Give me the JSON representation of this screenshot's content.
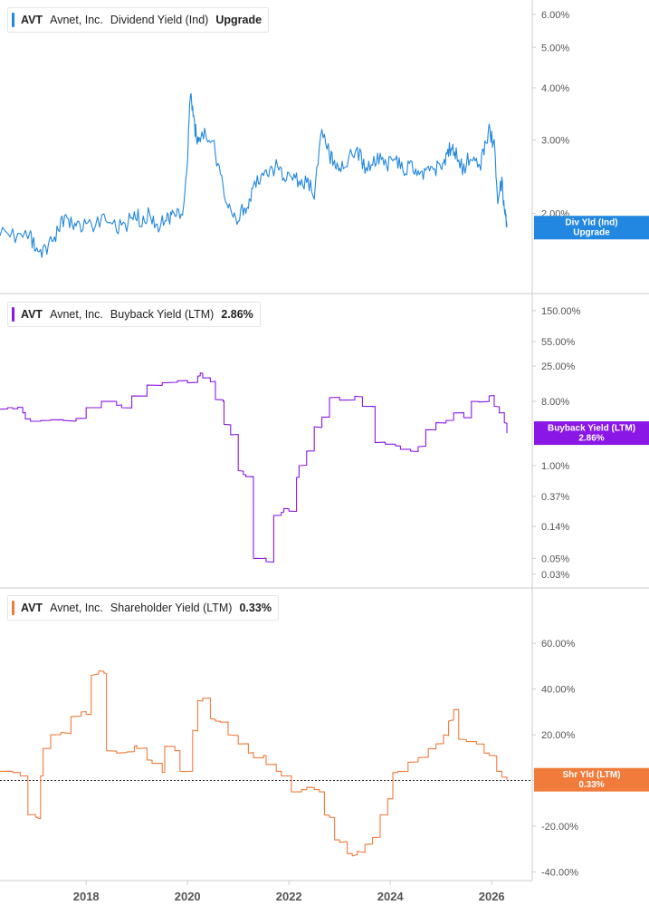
{
  "colors": {
    "dividend": "#2187e0",
    "buyback": "#8a17e6",
    "shareholder": "#f07b3b",
    "axis_text": "#555555",
    "divider": "#cccccc"
  },
  "chart_data": [
    {
      "type": "line",
      "legend": {
        "ticker": "AVT",
        "company": "Avnet, Inc.",
        "metric": "Dividend Yield (Ind)",
        "value": "Upgrade"
      },
      "badge": {
        "line1": "Div Yld (Ind)",
        "line2": "Upgrade"
      },
      "scale": "log",
      "ylim": [
        1.45,
        6.3
      ],
      "yticks": [
        2,
        3,
        4,
        5,
        6
      ],
      "ytick_labels": [
        "2.00%",
        "3.00%",
        "4.00%",
        "5.00%",
        "6.00%"
      ],
      "x": [
        2016.3,
        2016.6,
        2016.9,
        2017.0,
        2017.15,
        2017.3,
        2017.45,
        2017.6,
        2017.75,
        2017.9,
        2018.1,
        2018.35,
        2018.6,
        2018.8,
        2018.95,
        2019.1,
        2019.25,
        2019.4,
        2019.55,
        2019.65,
        2019.75,
        2019.9,
        2020.0,
        2020.06,
        2020.12,
        2020.18,
        2020.25,
        2020.35,
        2020.5,
        2020.65,
        2020.8,
        2020.95,
        2021.1,
        2021.2,
        2021.3,
        2021.45,
        2021.6,
        2021.75,
        2021.9,
        2022.05,
        2022.2,
        2022.35,
        2022.5,
        2022.65,
        2022.8,
        2022.9,
        2023.0,
        2023.15,
        2023.35,
        2023.5,
        2023.65,
        2023.8,
        2023.95,
        2024.1,
        2024.25,
        2024.4,
        2024.55,
        2024.7,
        2024.85,
        2025.0,
        2025.1,
        2025.2,
        2025.3,
        2025.45,
        2025.6,
        2025.75,
        2025.85,
        2025.95,
        2026.05,
        2026.12,
        2026.2,
        2026.26,
        2026.3
      ],
      "y": [
        1.82,
        1.78,
        1.76,
        1.65,
        1.62,
        1.7,
        1.82,
        1.97,
        1.9,
        1.86,
        1.88,
        1.92,
        1.84,
        1.88,
        2.05,
        1.88,
        2.0,
        1.85,
        1.96,
        1.97,
        1.95,
        2.05,
        2.6,
        3.95,
        3.3,
        3.05,
        3.05,
        3.15,
        2.95,
        2.45,
        2.05,
        1.93,
        2.05,
        2.1,
        2.3,
        2.45,
        2.5,
        2.6,
        2.4,
        2.5,
        2.35,
        2.4,
        2.25,
        3.15,
        2.75,
        2.65,
        2.6,
        2.7,
        2.85,
        2.55,
        2.65,
        2.7,
        2.6,
        2.75,
        2.5,
        2.65,
        2.45,
        2.5,
        2.55,
        2.6,
        2.7,
        2.9,
        2.75,
        2.55,
        2.8,
        2.55,
        2.85,
        3.15,
        2.9,
        2.2,
        2.35,
        2.0,
        1.85
      ]
    },
    {
      "type": "line",
      "legend": {
        "ticker": "AVT",
        "company": "Avnet, Inc.",
        "metric": "Buyback Yield (LTM)",
        "value": "2.86%"
      },
      "badge": {
        "line1": "Buyback Yield (LTM)",
        "line2": "2.86%"
      },
      "scale": "log",
      "ylim": [
        0.025,
        200
      ],
      "yticks": [
        0.03,
        0.05,
        0.14,
        0.37,
        1.0,
        8.0,
        25.0,
        55.0,
        150.0
      ],
      "ytick_labels": [
        "0.03%",
        "0.05%",
        "0.14%",
        "0.37%",
        "1.00%",
        "8.00%",
        "25.00%",
        "55.00%",
        "150.00%"
      ],
      "x": [
        2016.3,
        2016.45,
        2016.55,
        2016.65,
        2016.75,
        2016.8,
        2016.9,
        2017.1,
        2017.3,
        2017.55,
        2017.8,
        2018.0,
        2018.3,
        2018.6,
        2018.7,
        2018.9,
        2019.2,
        2019.5,
        2019.8,
        2020.0,
        2020.2,
        2020.25,
        2020.3,
        2020.45,
        2020.55,
        2020.7,
        2020.72,
        2020.85,
        2021.0,
        2021.1,
        2021.15,
        2021.3,
        2021.35,
        2021.5,
        2021.55,
        2021.7,
        2021.85,
        2021.9,
        2022.0,
        2022.15,
        2022.2,
        2022.35,
        2022.5,
        2022.65,
        2022.8,
        2023.0,
        2023.3,
        2023.45,
        2023.65,
        2023.7,
        2023.9,
        2024.1,
        2024.2,
        2024.4,
        2024.55,
        2024.7,
        2024.9,
        2025.1,
        2025.25,
        2025.45,
        2025.6,
        2025.75,
        2025.95,
        2026.05,
        2026.15,
        2026.25,
        2026.3
      ],
      "y": [
        6.2,
        6.5,
        6.3,
        6.6,
        5.5,
        4.5,
        4.2,
        4.3,
        4.4,
        4.3,
        4.6,
        6.5,
        8.0,
        7.0,
        6.5,
        9.5,
        13.5,
        14.5,
        15.5,
        14.5,
        18.0,
        20.0,
        17.0,
        15.0,
        8.5,
        8.0,
        3.8,
        2.7,
        0.85,
        0.75,
        0.7,
        0.05,
        0.05,
        0.05,
        0.045,
        0.2,
        0.22,
        0.25,
        0.23,
        0.68,
        1.0,
        1.6,
        3.5,
        4.8,
        9.0,
        8.3,
        9.4,
        6.8,
        6.7,
        2.1,
        2.0,
        1.9,
        1.7,
        1.6,
        1.85,
        3.2,
        4.0,
        4.3,
        5.5,
        4.7,
        8.0,
        7.8,
        9.5,
        6.8,
        5.5,
        4.0,
        2.86
      ]
    },
    {
      "type": "line",
      "legend": {
        "ticker": "AVT",
        "company": "Avnet, Inc.",
        "metric": "Shareholder Yield (LTM)",
        "value": "0.33%"
      },
      "badge": {
        "line1": "Shr Yld (LTM)",
        "line2": "0.33%"
      },
      "scale": "linear",
      "ylim": [
        -43,
        68
      ],
      "yticks": [
        -40,
        -20,
        0,
        20,
        40,
        60
      ],
      "ytick_labels": [
        "-40.00%",
        "-20.00%",
        "0.00%",
        "20.00%",
        "40.00%",
        "60.00%"
      ],
      "zero_line": true,
      "x": [
        2016.3,
        2016.55,
        2016.7,
        2016.85,
        2017.0,
        2017.05,
        2017.1,
        2017.15,
        2017.3,
        2017.5,
        2017.7,
        2017.9,
        2018.0,
        2018.1,
        2018.25,
        2018.35,
        2018.4,
        2018.6,
        2018.8,
        2018.95,
        2019.0,
        2019.2,
        2019.3,
        2019.5,
        2019.55,
        2019.75,
        2019.85,
        2020.0,
        2020.1,
        2020.2,
        2020.3,
        2020.45,
        2020.55,
        2020.65,
        2020.8,
        2021.0,
        2021.2,
        2021.3,
        2021.5,
        2021.55,
        2021.75,
        2021.85,
        2022.0,
        2022.05,
        2022.25,
        2022.35,
        2022.5,
        2022.6,
        2022.7,
        2022.8,
        2022.9,
        2023.0,
        2023.15,
        2023.25,
        2023.35,
        2023.5,
        2023.65,
        2023.8,
        2023.95,
        2024.05,
        2024.15,
        2024.35,
        2024.55,
        2024.75,
        2024.9,
        2025.05,
        2025.15,
        2025.25,
        2025.35,
        2025.5,
        2025.7,
        2025.85,
        2025.95,
        2026.1,
        2026.2,
        2026.3
      ],
      "y": [
        4.0,
        3.5,
        2.0,
        -15.0,
        -16.0,
        -16.5,
        2.0,
        14.0,
        20.0,
        21.0,
        28.0,
        30.0,
        29.0,
        46.0,
        48.0,
        47.0,
        13.0,
        12.0,
        12.5,
        15.0,
        14.0,
        9.0,
        7.5,
        3.5,
        15.0,
        13.0,
        4.0,
        4.0,
        22.0,
        35.0,
        36.0,
        27.0,
        26.0,
        25.5,
        20.0,
        16.0,
        12.0,
        10.0,
        11.0,
        7.0,
        4.0,
        2.0,
        2.0,
        -5.0,
        -4.0,
        -3.0,
        -4.0,
        -5.0,
        -15.0,
        -16.0,
        -26.0,
        -27.0,
        -32.0,
        -33.0,
        -31.0,
        -28.0,
        -25.0,
        -15.0,
        -8.0,
        3.5,
        4.0,
        8.0,
        10.0,
        14.0,
        16.0,
        20.0,
        26.0,
        31.0,
        18.0,
        17.0,
        16.0,
        12.0,
        11.0,
        4.0,
        1.5,
        0.33
      ]
    }
  ],
  "x_axis": {
    "ticks": [
      2018,
      2020,
      2022,
      2024,
      2026
    ],
    "tick_labels": [
      "2018",
      "2020",
      "2022",
      "2024",
      "2026"
    ],
    "range": [
      2016.3,
      2026.8
    ]
  }
}
